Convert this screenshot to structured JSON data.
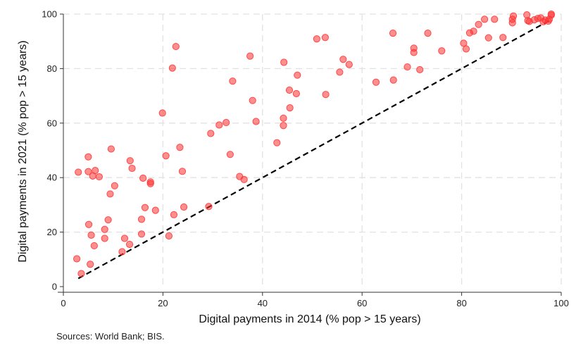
{
  "chart_data": {
    "type": "scatter",
    "xlabel": "Digital payments in 2014 (% pop > 15 years)",
    "ylabel": "Digital payments in 2021 (% pop > 15 years)",
    "xlim": [
      0,
      100
    ],
    "ylim": [
      0,
      100
    ],
    "x_ticks": [
      0,
      20,
      40,
      60,
      80,
      100
    ],
    "y_ticks": [
      0,
      20,
      40,
      60,
      80,
      100
    ],
    "grid": true,
    "marker_color": "#ff3333",
    "line_color": "#000000",
    "reference_line": {
      "style": "dashed",
      "from": [
        3,
        3
      ],
      "to": [
        98,
        98
      ]
    },
    "points": [
      {
        "x": 2.7,
        "y": 10.2
      },
      {
        "x": 3.6,
        "y": 4.8
      },
      {
        "x": 3.0,
        "y": 42.0
      },
      {
        "x": 5.0,
        "y": 47.6
      },
      {
        "x": 5.0,
        "y": 42.2
      },
      {
        "x": 5.9,
        "y": 40.6
      },
      {
        "x": 6.4,
        "y": 42.6
      },
      {
        "x": 7.2,
        "y": 40.3
      },
      {
        "x": 5.1,
        "y": 22.8
      },
      {
        "x": 5.6,
        "y": 18.9
      },
      {
        "x": 6.2,
        "y": 15.0
      },
      {
        "x": 5.4,
        "y": 8.2
      },
      {
        "x": 8.3,
        "y": 21.0
      },
      {
        "x": 8.3,
        "y": 17.7
      },
      {
        "x": 9.0,
        "y": 24.5
      },
      {
        "x": 9.4,
        "y": 34.0
      },
      {
        "x": 9.6,
        "y": 50.5
      },
      {
        "x": 10.3,
        "y": 37.0
      },
      {
        "x": 11.8,
        "y": 12.8
      },
      {
        "x": 12.3,
        "y": 17.7
      },
      {
        "x": 13.3,
        "y": 15.5
      },
      {
        "x": 13.4,
        "y": 46.2
      },
      {
        "x": 13.8,
        "y": 43.4
      },
      {
        "x": 15.7,
        "y": 24.7
      },
      {
        "x": 15.7,
        "y": 19.3
      },
      {
        "x": 16.0,
        "y": 39.8
      },
      {
        "x": 16.4,
        "y": 29.0
      },
      {
        "x": 17.5,
        "y": 38.4
      },
      {
        "x": 17.5,
        "y": 37.8
      },
      {
        "x": 18.5,
        "y": 28.0
      },
      {
        "x": 19.9,
        "y": 63.7
      },
      {
        "x": 20.6,
        "y": 48.0
      },
      {
        "x": 21.2,
        "y": 18.6
      },
      {
        "x": 21.9,
        "y": 80.2
      },
      {
        "x": 22.2,
        "y": 26.4
      },
      {
        "x": 22.6,
        "y": 88.1
      },
      {
        "x": 23.4,
        "y": 51.1
      },
      {
        "x": 23.9,
        "y": 42.3
      },
      {
        "x": 24.2,
        "y": 29.2
      },
      {
        "x": 29.2,
        "y": 29.4
      },
      {
        "x": 29.6,
        "y": 56.2
      },
      {
        "x": 31.3,
        "y": 59.3
      },
      {
        "x": 32.7,
        "y": 60.2
      },
      {
        "x": 33.5,
        "y": 48.5
      },
      {
        "x": 34.0,
        "y": 75.4
      },
      {
        "x": 35.4,
        "y": 40.4
      },
      {
        "x": 36.3,
        "y": 39.3
      },
      {
        "x": 37.5,
        "y": 84.6
      },
      {
        "x": 38.0,
        "y": 68.3
      },
      {
        "x": 38.7,
        "y": 60.6
      },
      {
        "x": 42.9,
        "y": 52.8
      },
      {
        "x": 44.3,
        "y": 82.3
      },
      {
        "x": 44.2,
        "y": 61.8
      },
      {
        "x": 44.2,
        "y": 59.1
      },
      {
        "x": 45.4,
        "y": 72.1
      },
      {
        "x": 45.5,
        "y": 65.6
      },
      {
        "x": 46.8,
        "y": 70.8
      },
      {
        "x": 47.0,
        "y": 77.6
      },
      {
        "x": 50.9,
        "y": 90.9
      },
      {
        "x": 52.6,
        "y": 91.4
      },
      {
        "x": 52.7,
        "y": 70.5
      },
      {
        "x": 55.5,
        "y": 78.7
      },
      {
        "x": 56.2,
        "y": 83.4
      },
      {
        "x": 57.4,
        "y": 81.5
      },
      {
        "x": 62.8,
        "y": 75.0
      },
      {
        "x": 66.2,
        "y": 93.0
      },
      {
        "x": 66.3,
        "y": 75.8
      },
      {
        "x": 69.1,
        "y": 80.6
      },
      {
        "x": 70.4,
        "y": 87.5
      },
      {
        "x": 70.4,
        "y": 85.9
      },
      {
        "x": 71.6,
        "y": 79.6
      },
      {
        "x": 73.2,
        "y": 93.0
      },
      {
        "x": 76.0,
        "y": 86.5
      },
      {
        "x": 80.4,
        "y": 89.3
      },
      {
        "x": 80.9,
        "y": 87.2
      },
      {
        "x": 81.6,
        "y": 93.1
      },
      {
        "x": 82.4,
        "y": 93.7
      },
      {
        "x": 83.4,
        "y": 96.2
      },
      {
        "x": 84.6,
        "y": 98.1
      },
      {
        "x": 85.4,
        "y": 91.3
      },
      {
        "x": 86.6,
        "y": 98.1
      },
      {
        "x": 88.3,
        "y": 91.4
      },
      {
        "x": 90.2,
        "y": 98.1
      },
      {
        "x": 90.2,
        "y": 96.8
      },
      {
        "x": 90.4,
        "y": 99.3
      },
      {
        "x": 93.1,
        "y": 99.7
      },
      {
        "x": 93.3,
        "y": 97.6
      },
      {
        "x": 93.6,
        "y": 97.3
      },
      {
        "x": 94.6,
        "y": 97.9
      },
      {
        "x": 95.3,
        "y": 98.4
      },
      {
        "x": 95.9,
        "y": 98.6
      },
      {
        "x": 96.4,
        "y": 97.2
      },
      {
        "x": 96.8,
        "y": 97.8
      },
      {
        "x": 97.4,
        "y": 97.4
      },
      {
        "x": 97.6,
        "y": 98.1
      },
      {
        "x": 98.0,
        "y": 99.6
      },
      {
        "x": 98.0,
        "y": 100.0
      }
    ]
  },
  "footer": {
    "source": "Sources: World Bank; BIS."
  }
}
